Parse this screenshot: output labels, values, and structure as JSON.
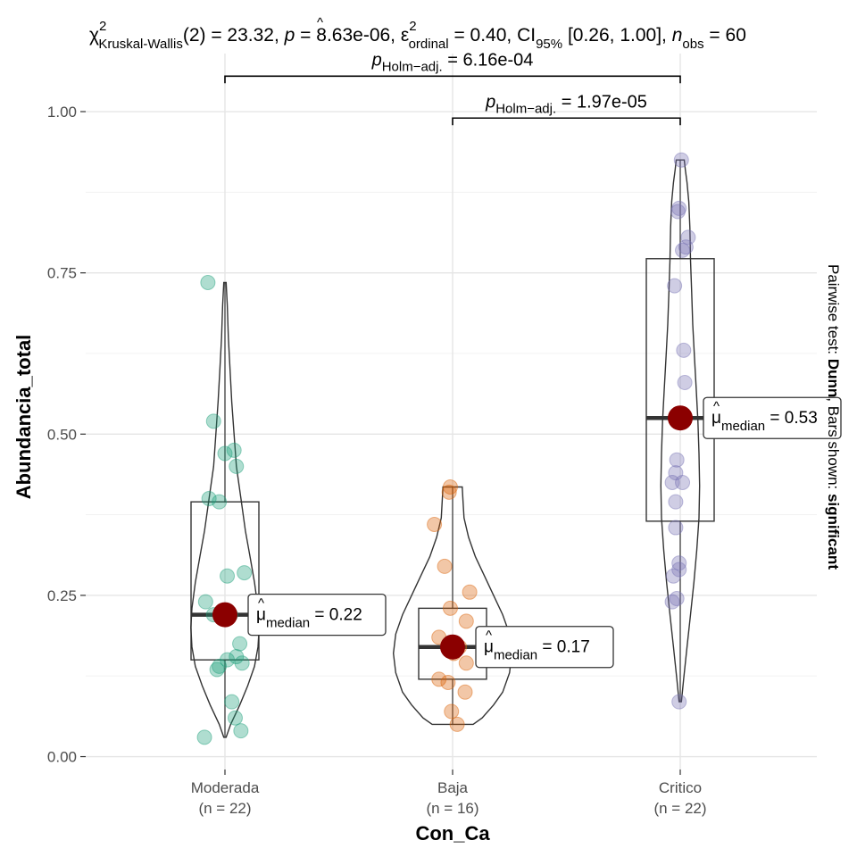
{
  "chart_data": {
    "type": "violin-box-scatter",
    "subtitle": {
      "stat_name": "χ",
      "stat_sup": "2",
      "stat_sub": "Kruskal-Wallis",
      "stat_rest": "(2) = 23.32, ",
      "p_label": "p",
      "p_rest": " = 8.63e-06, ",
      "effect_name": "ε",
      "effect_hat": "^",
      "effect_sup": "2",
      "effect_sub": "ordinal",
      "effect_rest": " = 0.40, CI",
      "ci_sub": "95%",
      "ci_rest": " [0.26, 1.00], ",
      "n_label": "n",
      "n_sub": "obs",
      "n_rest": " = 60"
    },
    "caption": {
      "prefix": "Pairwise test: ",
      "test": "Dunn",
      "middle": ", Bars shown: ",
      "shown": "significant"
    },
    "xlabel": "Con_Ca",
    "ylabel": "Abundancia_total",
    "ylim": [
      -0.02,
      1.09
    ],
    "yticks": [
      0.0,
      0.25,
      0.5,
      0.75,
      1.0
    ],
    "ytick_labels": [
      "0.00",
      "0.25",
      "0.50",
      "0.75",
      "1.00"
    ],
    "groups": [
      {
        "name": "Moderada",
        "n_label": "(n = 22)",
        "color": "#1b9e77",
        "box": {
          "q1": 0.15,
          "median": 0.22,
          "q3": 0.395,
          "min": 0.03,
          "max": 0.735
        },
        "median_label": "0.22",
        "violin": [
          [
            0.03,
            0.01
          ],
          [
            0.05,
            0.05
          ],
          [
            0.08,
            0.13
          ],
          [
            0.11,
            0.2
          ],
          [
            0.14,
            0.26
          ],
          [
            0.17,
            0.29
          ],
          [
            0.2,
            0.3
          ],
          [
            0.23,
            0.29
          ],
          [
            0.27,
            0.26
          ],
          [
            0.31,
            0.22
          ],
          [
            0.35,
            0.18
          ],
          [
            0.4,
            0.14
          ],
          [
            0.45,
            0.1
          ],
          [
            0.5,
            0.08
          ],
          [
            0.55,
            0.06
          ],
          [
            0.6,
            0.045
          ],
          [
            0.65,
            0.03
          ],
          [
            0.7,
            0.02
          ],
          [
            0.735,
            0.01
          ]
        ],
        "points": [
          0.735,
          0.52,
          0.47,
          0.475,
          0.45,
          0.4,
          0.395,
          0.28,
          0.285,
          0.24,
          0.22,
          0.22,
          0.175,
          0.15,
          0.155,
          0.145,
          0.14,
          0.135,
          0.085,
          0.06,
          0.04,
          0.03
        ],
        "jitter": [
          -0.15,
          -0.1,
          0.0,
          0.08,
          0.1,
          -0.14,
          -0.05,
          0.02,
          0.17,
          -0.17,
          -0.1,
          0.05,
          0.13,
          0.02,
          0.1,
          0.15,
          -0.05,
          -0.07,
          0.06,
          0.09,
          0.14,
          -0.18
        ]
      },
      {
        "name": "Baja",
        "n_label": "(n = 16)",
        "color": "#d95f02",
        "box": {
          "q1": 0.12,
          "median": 0.17,
          "q3": 0.23,
          "min": 0.05,
          "max": 0.418
        },
        "median_label": "0.17",
        "violin": [
          [
            0.05,
            0.18
          ],
          [
            0.06,
            0.26
          ],
          [
            0.08,
            0.36
          ],
          [
            0.1,
            0.44
          ],
          [
            0.13,
            0.5
          ],
          [
            0.16,
            0.52
          ],
          [
            0.19,
            0.5
          ],
          [
            0.22,
            0.44
          ],
          [
            0.25,
            0.36
          ],
          [
            0.28,
            0.28
          ],
          [
            0.31,
            0.2
          ],
          [
            0.34,
            0.14
          ],
          [
            0.37,
            0.1
          ],
          [
            0.4,
            0.09
          ],
          [
            0.418,
            0.085
          ]
        ],
        "points": [
          0.418,
          0.41,
          0.36,
          0.295,
          0.255,
          0.23,
          0.21,
          0.185,
          0.17,
          0.16,
          0.145,
          0.12,
          0.115,
          0.1,
          0.07,
          0.05
        ],
        "jitter": [
          -0.02,
          -0.03,
          -0.16,
          -0.07,
          0.15,
          -0.02,
          0.12,
          -0.12,
          0.06,
          0.01,
          0.12,
          -0.12,
          -0.04,
          0.11,
          -0.01,
          0.04
        ]
      },
      {
        "name": "Critico",
        "n_label": "(n = 22)",
        "color": "#7570b3",
        "box": {
          "q1": 0.365,
          "median": 0.525,
          "q3": 0.772,
          "min": 0.085,
          "max": 0.925
        },
        "median_label": "0.53",
        "violin": [
          [
            0.085,
            0.01
          ],
          [
            0.12,
            0.03
          ],
          [
            0.17,
            0.06
          ],
          [
            0.22,
            0.09
          ],
          [
            0.27,
            0.12
          ],
          [
            0.32,
            0.145
          ],
          [
            0.37,
            0.165
          ],
          [
            0.42,
            0.17
          ],
          [
            0.47,
            0.165
          ],
          [
            0.52,
            0.155
          ],
          [
            0.57,
            0.14
          ],
          [
            0.62,
            0.125
          ],
          [
            0.67,
            0.11
          ],
          [
            0.72,
            0.1
          ],
          [
            0.77,
            0.09
          ],
          [
            0.82,
            0.085
          ],
          [
            0.86,
            0.075
          ],
          [
            0.89,
            0.06
          ],
          [
            0.91,
            0.045
          ],
          [
            0.925,
            0.035
          ]
        ],
        "points": [
          0.925,
          0.85,
          0.845,
          0.805,
          0.79,
          0.785,
          0.73,
          0.63,
          0.58,
          0.525,
          0.46,
          0.44,
          0.425,
          0.425,
          0.395,
          0.355,
          0.3,
          0.29,
          0.28,
          0.245,
          0.24,
          0.085
        ],
        "jitter": [
          0.01,
          -0.01,
          -0.02,
          0.07,
          0.05,
          0.02,
          -0.05,
          0.03,
          0.04,
          -0.04,
          -0.03,
          -0.04,
          0.02,
          -0.07,
          -0.04,
          -0.04,
          -0.01,
          -0.01,
          -0.06,
          -0.03,
          -0.07,
          -0.01
        ]
      }
    ],
    "pairwise": [
      {
        "from": 0,
        "to": 2,
        "y": 1.055,
        "label_p": "p",
        "label_sub": "Holm−adj.",
        "label_val": " = 6.16e-04"
      },
      {
        "from": 1,
        "to": 2,
        "y": 0.99,
        "label_p": "p",
        "label_sub": "Holm−adj.",
        "label_val": " = 1.97e-05"
      }
    ],
    "median_label_prefix": {
      "mu": "μ",
      "hat": "^",
      "sub": "median",
      "eq": " = "
    },
    "median_point_color": "#8b0000",
    "grid": true
  }
}
